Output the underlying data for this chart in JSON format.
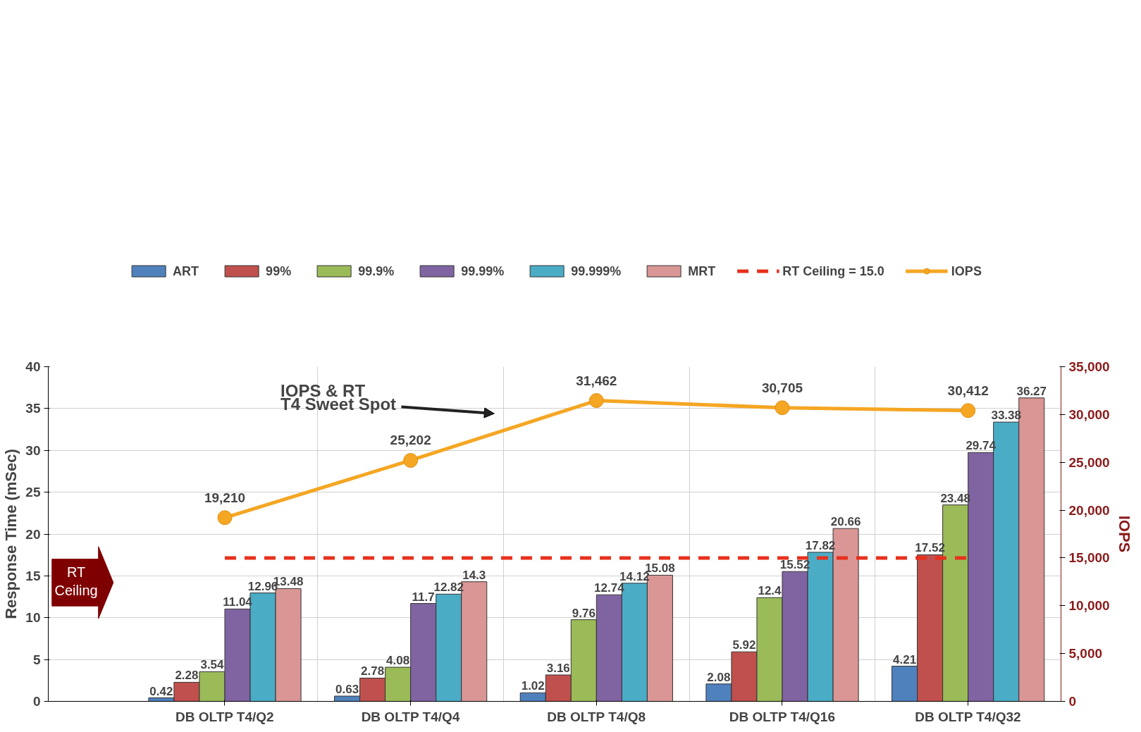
{
  "chart_data": {
    "type": "bar",
    "categories": [
      "DB OLTP T4/Q2",
      "DB OLTP T4/Q4",
      "DB OLTP T4/Q8",
      "DB OLTP T4/Q16",
      "DB OLTP T4/Q32"
    ],
    "ylabel": "Response Time (mSec)",
    "y2label": "IOPS",
    "ylim": [
      0,
      40
    ],
    "yticks": [
      0,
      5,
      10,
      15,
      20,
      25,
      30,
      35,
      40
    ],
    "y2lim": [
      0,
      35000
    ],
    "y2ticks": [
      0,
      {
        "value": 5000,
        "label": "5,000"
      },
      {
        "value": 10000,
        "label": "10,000"
      },
      {
        "value": 15000,
        "label": "15,000"
      },
      {
        "value": 20000,
        "label": "20,000"
      },
      {
        "value": 25000,
        "label": "25,000"
      },
      {
        "value": 30000,
        "label": "30,000"
      },
      {
        "value": 35000,
        "label": "35,000"
      }
    ],
    "series": [
      {
        "name": "ART",
        "color": "#4f81bd",
        "values": [
          0.42,
          0.63,
          1.02,
          2.08,
          4.21
        ]
      },
      {
        "name": "99%",
        "color": "#c0504d",
        "values": [
          2.28,
          2.78,
          3.16,
          5.92,
          17.52
        ]
      },
      {
        "name": "99.9%",
        "color": "#9bbb59",
        "values": [
          3.54,
          4.08,
          9.76,
          12.4,
          23.48
        ]
      },
      {
        "name": "99.99%",
        "color": "#8064a2",
        "values": [
          11.04,
          11.7,
          12.74,
          15.52,
          29.74
        ]
      },
      {
        "name": "99.999%",
        "color": "#4bacc6",
        "values": [
          12.96,
          12.82,
          14.12,
          17.82,
          33.38
        ]
      },
      {
        "name": "MRT",
        "color": "#d99694",
        "values": [
          13.48,
          14.3,
          15.08,
          20.66,
          36.27
        ]
      },
      {
        "name": "RT Ceiling = 15.0",
        "type": "line",
        "axis": "y2",
        "color": "#e8301c",
        "line_style": "dashed",
        "marker": "none",
        "values": [
          15000,
          15000,
          15000,
          15000,
          15000
        ],
        "value_labels": [
          null,
          null,
          null,
          null,
          null
        ]
      },
      {
        "name": "IOPS",
        "type": "line",
        "axis": "y2",
        "color": "#f5a623",
        "marker": "circle",
        "values": [
          19210,
          25202,
          31462,
          30705,
          30412
        ],
        "value_labels": [
          "19,210",
          "25,202",
          "31,462",
          "30,705",
          "30,412"
        ]
      }
    ],
    "data_labels": true,
    "grid": true,
    "legend": "top",
    "annotations": [
      "IOPS & RT\nT4 Sweet Spot",
      "RT\nCeiling"
    ]
  }
}
